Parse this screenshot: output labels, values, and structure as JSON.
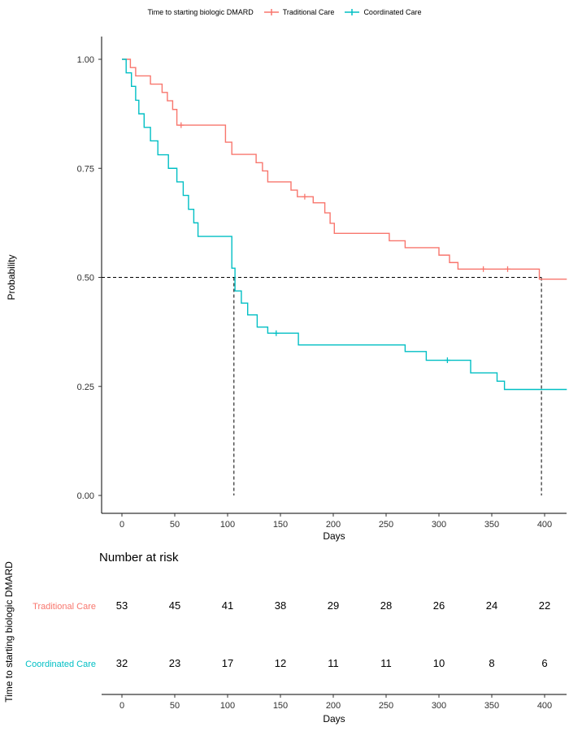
{
  "page": {
    "background": "#FFFFFF"
  },
  "legend": {
    "title": "Time to starting biologic DMARD",
    "items": [
      {
        "label": "Traditional Care",
        "color": "#F8766D"
      },
      {
        "label": "Coordinated Care",
        "color": "#00BFC4"
      }
    ]
  },
  "chart_data": {
    "type": "line",
    "subtype": "kaplan-meier-step",
    "title": "Time to starting biologic DMARD",
    "xlabel": "Days",
    "ylabel": "Probability",
    "xlim": [
      0,
      421
    ],
    "xticks": [
      0,
      50,
      100,
      150,
      200,
      250,
      300,
      350,
      400
    ],
    "ylim": [
      0,
      1
    ],
    "yticks": [
      1.0,
      0.75,
      0.5,
      0.25,
      0.0
    ],
    "ytick_labels": [
      "1.00",
      "0.75",
      "0.50",
      "0.25",
      "0.00"
    ],
    "grid": false,
    "legend_position": "top",
    "series": [
      {
        "name": "Traditional Care",
        "color": "#F8766D",
        "end_day": 421,
        "steps": [
          [
            0,
            1.0
          ],
          [
            8,
            0.981
          ],
          [
            13,
            0.962
          ],
          [
            27,
            0.943
          ],
          [
            38,
            0.924
          ],
          [
            43,
            0.905
          ],
          [
            48,
            0.885
          ],
          [
            52,
            0.849
          ],
          [
            98,
            0.81
          ],
          [
            104,
            0.782
          ],
          [
            127,
            0.763
          ],
          [
            133,
            0.744
          ],
          [
            138,
            0.719
          ],
          [
            160,
            0.7
          ],
          [
            166,
            0.685
          ],
          [
            181,
            0.671
          ],
          [
            192,
            0.648
          ],
          [
            197,
            0.624
          ],
          [
            201,
            0.601
          ],
          [
            253,
            0.584
          ],
          [
            268,
            0.568
          ],
          [
            300,
            0.551
          ],
          [
            310,
            0.534
          ],
          [
            318,
            0.519
          ],
          [
            395,
            0.496
          ]
        ],
        "censors": [
          [
            56,
            0.849
          ],
          [
            173,
            0.685
          ],
          [
            342,
            0.519
          ],
          [
            365,
            0.519
          ]
        ]
      },
      {
        "name": "Coordinated Care",
        "color": "#00BFC4",
        "end_day": 421,
        "steps": [
          [
            0,
            1.0
          ],
          [
            4,
            0.969
          ],
          [
            9,
            0.938
          ],
          [
            13,
            0.906
          ],
          [
            16,
            0.875
          ],
          [
            21,
            0.844
          ],
          [
            27,
            0.813
          ],
          [
            34,
            0.781
          ],
          [
            44,
            0.75
          ],
          [
            52,
            0.719
          ],
          [
            58,
            0.688
          ],
          [
            63,
            0.656
          ],
          [
            68,
            0.625
          ],
          [
            72,
            0.594
          ],
          [
            104,
            0.521
          ],
          [
            107,
            0.469
          ],
          [
            113,
            0.441
          ],
          [
            119,
            0.414
          ],
          [
            128,
            0.386
          ],
          [
            138,
            0.372
          ],
          [
            167,
            0.345
          ],
          [
            268,
            0.33
          ],
          [
            288,
            0.31
          ],
          [
            330,
            0.281
          ],
          [
            355,
            0.262
          ],
          [
            362,
            0.243
          ]
        ],
        "censors": [
          [
            146,
            0.372
          ],
          [
            308,
            0.31
          ]
        ]
      }
    ],
    "reference_lines": {
      "horizontal_probability": 0.5,
      "vertical_days": [
        106,
        397
      ]
    },
    "risk_table": {
      "title": "Number at risk",
      "ylabel": "Time to starting biologic DMARD",
      "xlabel": "Days",
      "times": [
        0,
        50,
        100,
        150,
        200,
        250,
        300,
        350,
        400
      ],
      "rows": [
        {
          "label": "Traditional Care",
          "color": "#F8766D",
          "counts": [
            53,
            45,
            41,
            38,
            29,
            28,
            26,
            24,
            22
          ]
        },
        {
          "label": "Coordinated Care",
          "color": "#00BFC4",
          "counts": [
            32,
            23,
            17,
            12,
            11,
            11,
            10,
            8,
            6
          ]
        }
      ]
    }
  }
}
